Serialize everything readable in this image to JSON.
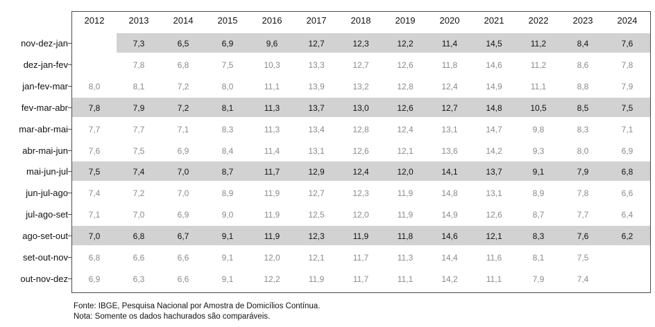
{
  "chart_data": {
    "type": "table",
    "columns": [
      "2012",
      "2013",
      "2014",
      "2015",
      "2016",
      "2017",
      "2018",
      "2019",
      "2020",
      "2021",
      "2022",
      "2023",
      "2024"
    ],
    "rows": [
      {
        "label": "nov-dez-jan",
        "highlighted": true,
        "values": [
          "",
          "7,3",
          "6,5",
          "6,9",
          "9,6",
          "12,7",
          "12,3",
          "12,2",
          "11,4",
          "14,5",
          "11,2",
          "8,4",
          "7,6"
        ]
      },
      {
        "label": "dez-jan-fev",
        "highlighted": false,
        "values": [
          "",
          "7,8",
          "6,8",
          "7,5",
          "10,3",
          "13,3",
          "12,7",
          "12,6",
          "11,8",
          "14,6",
          "11,2",
          "8,6",
          "7,8"
        ]
      },
      {
        "label": "jan-fev-mar",
        "highlighted": false,
        "values": [
          "8,0",
          "8,1",
          "7,2",
          "8,0",
          "11,1",
          "13,9",
          "13,2",
          "12,8",
          "12,4",
          "14,9",
          "11,1",
          "8,8",
          "7,9"
        ]
      },
      {
        "label": "fev-mar-abr",
        "highlighted": true,
        "values": [
          "7,8",
          "7,9",
          "7,2",
          "8,1",
          "11,3",
          "13,7",
          "13,0",
          "12,6",
          "12,7",
          "14,8",
          "10,5",
          "8,5",
          "7,5"
        ]
      },
      {
        "label": "mar-abr-mai",
        "highlighted": false,
        "values": [
          "7,7",
          "7,7",
          "7,1",
          "8,3",
          "11,3",
          "13,4",
          "12,8",
          "12,4",
          "13,1",
          "14,7",
          "9,8",
          "8,3",
          "7,1"
        ]
      },
      {
        "label": "abr-mai-jun",
        "highlighted": false,
        "values": [
          "7,6",
          "7,5",
          "6,9",
          "8,4",
          "11,4",
          "13,1",
          "12,6",
          "12,1",
          "13,6",
          "14,2",
          "9,3",
          "8,0",
          "6,9"
        ]
      },
      {
        "label": "mai-jun-jul",
        "highlighted": true,
        "values": [
          "7,5",
          "7,4",
          "7,0",
          "8,7",
          "11,7",
          "12,9",
          "12,4",
          "12,0",
          "14,1",
          "13,7",
          "9,1",
          "7,9",
          "6,8"
        ]
      },
      {
        "label": "jun-jul-ago",
        "highlighted": false,
        "values": [
          "7,4",
          "7,2",
          "7,0",
          "8,9",
          "11,9",
          "12,7",
          "12,3",
          "11,9",
          "14,8",
          "13,1",
          "8,9",
          "7,8",
          "6,6"
        ]
      },
      {
        "label": "jul-ago-set",
        "highlighted": false,
        "values": [
          "7,1",
          "7,0",
          "6,9",
          "9,0",
          "11,9",
          "12,5",
          "12,0",
          "11,9",
          "14,9",
          "12,6",
          "8,7",
          "7,7",
          "6,4"
        ]
      },
      {
        "label": "ago-set-out",
        "highlighted": true,
        "values": [
          "7,0",
          "6,8",
          "6,7",
          "9,1",
          "11,9",
          "12,3",
          "11,9",
          "11,8",
          "14,6",
          "12,1",
          "8,3",
          "7,6",
          "6,2"
        ]
      },
      {
        "label": "set-out-nov",
        "highlighted": false,
        "values": [
          "6,8",
          "6,6",
          "6,6",
          "9,1",
          "12,0",
          "12,1",
          "11,7",
          "11,3",
          "14,4",
          "11,6",
          "8,1",
          "7,5",
          ""
        ]
      },
      {
        "label": "out-nov-dez",
        "highlighted": false,
        "values": [
          "6,9",
          "6,3",
          "6,6",
          "9,1",
          "12,2",
          "11,9",
          "11,7",
          "11,1",
          "14,2",
          "11,1",
          "7,9",
          "7,4",
          ""
        ]
      }
    ],
    "highlight_color": "#d2d2d2"
  },
  "footer": {
    "source": "Fonte: IBGE, Pesquisa Nacional por Amostra de Domicílios Contínua.",
    "note": " Nota: Somente os dados hachurados são comparáveis."
  }
}
